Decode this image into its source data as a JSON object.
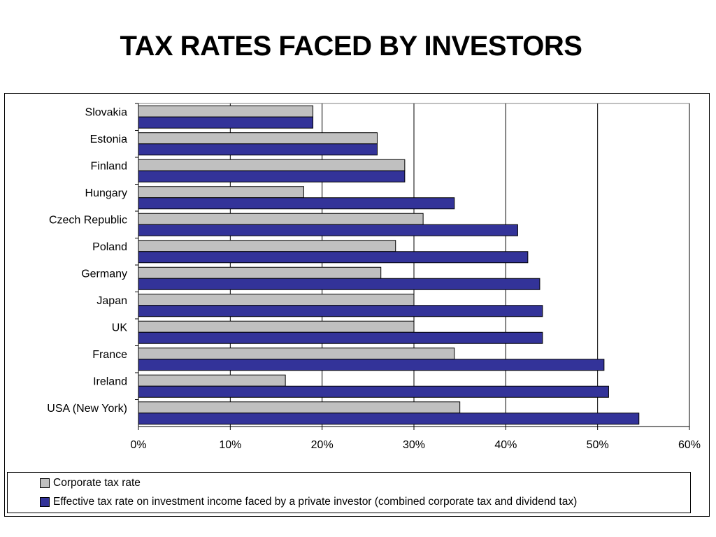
{
  "title": "TAX RATES FACED BY INVESTORS",
  "colors": {
    "corporate": "#c0c0c0",
    "effective": "#333399",
    "axis": "#000000"
  },
  "chart_data": {
    "type": "bar",
    "orientation": "horizontal",
    "categories": [
      "Slovakia",
      "Estonia",
      "Finland",
      "Hungary",
      "Czech Republic",
      "Poland",
      "Germany",
      "Japan",
      "UK",
      "France",
      "Ireland",
      "USA (New York)"
    ],
    "series": [
      {
        "name": "Corporate tax rate",
        "values": [
          19,
          26,
          29,
          18,
          31,
          28,
          26.4,
          30,
          30,
          34.4,
          16,
          35
        ]
      },
      {
        "name": "Effective tax rate on investment income faced by a private investor (combined corporate tax and dividend tax)",
        "values": [
          19,
          26,
          29,
          34.4,
          41.3,
          42.4,
          43.7,
          44,
          44,
          50.7,
          51.2,
          54.5
        ]
      }
    ],
    "xlim": [
      0,
      60
    ],
    "x_ticks": [
      "0%",
      "10%",
      "20%",
      "30%",
      "40%",
      "50%",
      "60%"
    ],
    "grid": "vertical lines",
    "legend_position": "bottom"
  }
}
